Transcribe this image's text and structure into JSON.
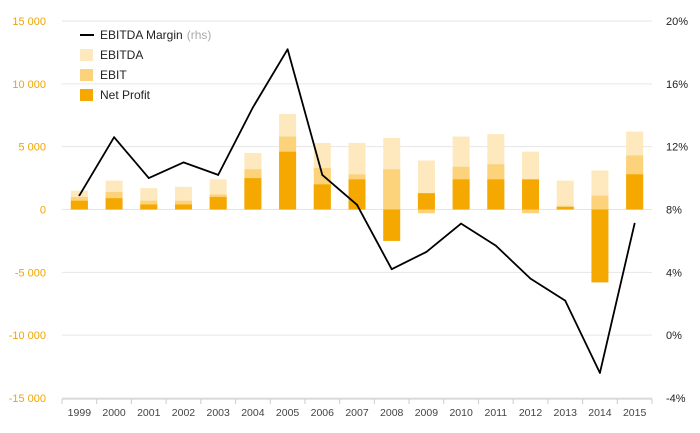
{
  "chart_data": {
    "type": "bar",
    "categories": [
      "1999",
      "2000",
      "2001",
      "2002",
      "2003",
      "2004",
      "2005",
      "2006",
      "2007",
      "2008",
      "2009",
      "2010",
      "2011",
      "2012",
      "2013",
      "2014",
      "2015"
    ],
    "series": [
      {
        "name": "EBITDA",
        "axis": "left",
        "color": "#fde9bd",
        "values": [
          1500,
          2300,
          1700,
          1800,
          2400,
          4500,
          7600,
          5300,
          5300,
          5700,
          3900,
          5800,
          6000,
          4600,
          2300,
          3100,
          6200
        ]
      },
      {
        "name": "EBIT",
        "axis": "left",
        "color": "#fcd27a",
        "values": [
          1000,
          1400,
          700,
          700,
          1200,
          3200,
          5800,
          3300,
          2800,
          3200,
          -300,
          3400,
          3600,
          -300,
          300,
          1100,
          4300
        ]
      },
      {
        "name": "Net Profit",
        "axis": "left",
        "color": "#f5a800",
        "values": [
          700,
          900,
          400,
          400,
          1000,
          2500,
          4600,
          2000,
          2400,
          -2500,
          1300,
          2400,
          2400,
          2400,
          200,
          -5800,
          2800
        ]
      },
      {
        "name": "EBITDA Margin",
        "axis": "right",
        "type": "line",
        "color": "#000000",
        "values": [
          8.9,
          12.6,
          10.0,
          11.0,
          10.2,
          14.5,
          18.2,
          10.2,
          8.3,
          4.2,
          5.3,
          7.1,
          5.7,
          3.6,
          2.2,
          -2.4,
          7.1
        ]
      }
    ],
    "legend": {
      "position": "top-left",
      "entries": [
        {
          "label": "EBITDA Margin",
          "suffix": "(rhs)",
          "symbol": "line"
        },
        {
          "label": "EBITDA",
          "symbol": "box"
        },
        {
          "label": "EBIT",
          "symbol": "box"
        },
        {
          "label": "Net Profit",
          "symbol": "box"
        }
      ]
    },
    "y_left": {
      "ticks": [
        15000,
        10000,
        5000,
        0,
        -5000,
        -10000,
        -15000
      ],
      "tick_labels": [
        "15 000",
        "10 000",
        "5 000",
        "0",
        "-5 000",
        "-10 000",
        "-15 000"
      ],
      "ylim": [
        -15000,
        15000
      ],
      "color": "#f0a500"
    },
    "y_right": {
      "ticks": [
        20,
        16,
        12,
        8,
        4,
        0,
        -4
      ],
      "tick_labels": [
        "20%",
        "16%",
        "12%",
        "8%",
        "4%",
        "0%",
        "-4%"
      ],
      "ylim": [
        -4,
        20
      ]
    },
    "grid": true,
    "title": "",
    "xlabel": "",
    "ylabel": ""
  }
}
